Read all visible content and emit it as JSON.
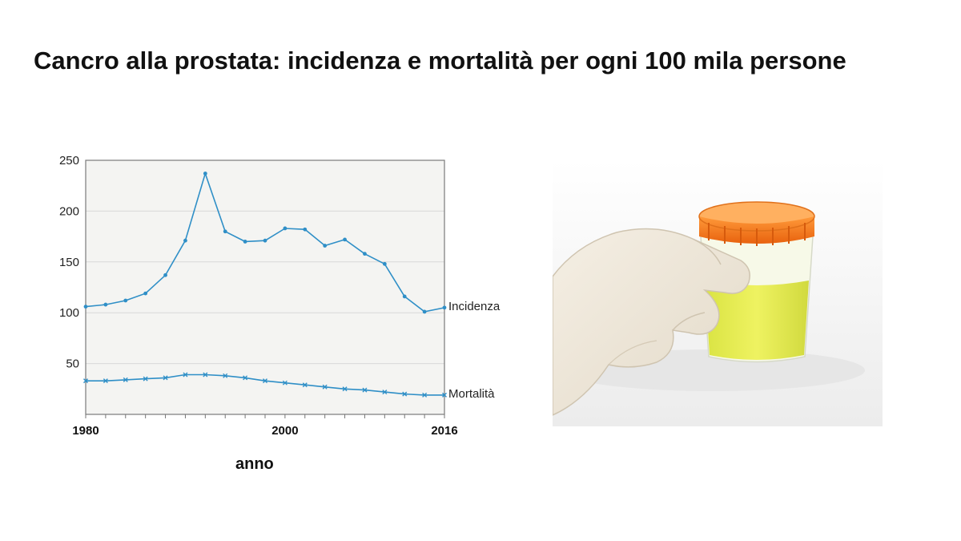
{
  "title": "Cancro alla prostata: incidenza e mortalità per ogni 100 mila persone",
  "photo": {
    "icon": "urine-sample-container-in-gloved-hand-photo"
  },
  "chart_data": {
    "type": "line",
    "xlabel": "anno",
    "ylabel": "",
    "xlim": [
      1980,
      2016
    ],
    "ylim": [
      0,
      250
    ],
    "yticks": [
      50,
      100,
      150,
      200,
      250
    ],
    "xtick_labels": [
      "1980",
      "2000",
      "2016"
    ],
    "grid": true,
    "legend": "inline-right",
    "colors": {
      "line": "#2f8fc7",
      "plot_bg": "#f4f4f2",
      "grid": "#d8d8d8"
    },
    "series": [
      {
        "name": "Incidenza",
        "x": [
          1980,
          1982,
          1984,
          1986,
          1988,
          1990,
          1992,
          1994,
          1996,
          1998,
          2000,
          2002,
          2004,
          2006,
          2008,
          2010,
          2012,
          2014,
          2016
        ],
        "values": [
          106,
          108,
          112,
          119,
          137,
          171,
          237,
          180,
          170,
          171,
          183,
          182,
          166,
          172,
          158,
          148,
          116,
          101,
          105
        ]
      },
      {
        "name": "Mortalità",
        "x": [
          1980,
          1982,
          1984,
          1986,
          1988,
          1990,
          1992,
          1994,
          1996,
          1998,
          2000,
          2002,
          2004,
          2006,
          2008,
          2010,
          2012,
          2014,
          2016
        ],
        "values": [
          33,
          33,
          34,
          35,
          36,
          39,
          39,
          38,
          36,
          33,
          31,
          29,
          27,
          25,
          24,
          22,
          20,
          19,
          19
        ]
      }
    ]
  }
}
